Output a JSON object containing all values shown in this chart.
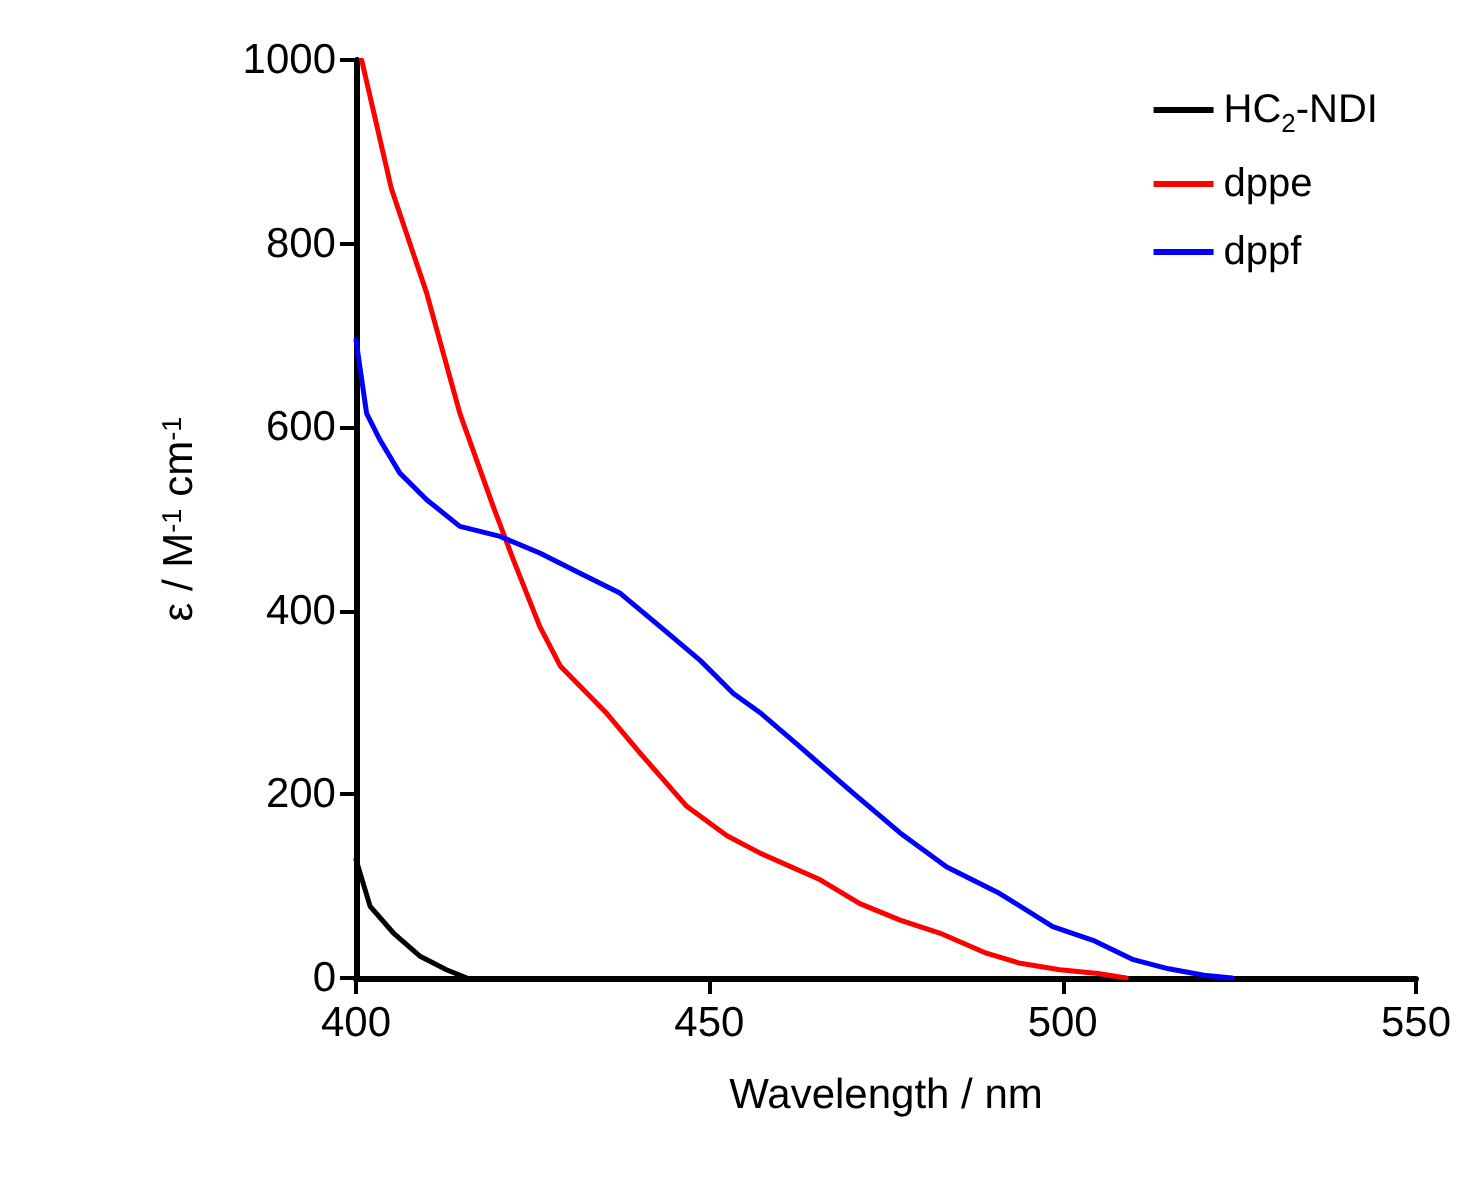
{
  "chart_data": {
    "type": "line",
    "xlabel": "Wavelength / nm",
    "ylabel": "ε / M$^{-1}$ cm$^{-1}$",
    "xlim": [
      400,
      550
    ],
    "xticks": [
      400,
      450,
      500,
      550
    ],
    "ylim": [
      0,
      1000
    ],
    "yticks": [
      0,
      200,
      400,
      600,
      800,
      1000
    ],
    "grid": false,
    "legend": "top right",
    "marker": "none",
    "line_style": "solid",
    "series": [
      {
        "name": "HC$_{2}$-NDI",
        "color": "#000000",
        "x": [
          400,
          402,
          405.3,
          409,
          412.8,
          415.7
        ],
        "values": [
          129,
          78,
          49,
          24,
          9,
          0
        ]
      },
      {
        "name": "dppe",
        "color": "#ff0000",
        "x": [
          400.8,
          405,
          410,
          414.7,
          419.4,
          422.3,
          426,
          428.9,
          435.5,
          440.2,
          446.8,
          452.5,
          457.2,
          465.7,
          471.3,
          477,
          482.6,
          489.2,
          494,
          499.6,
          505,
          509
        ],
        "values": [
          1000,
          860,
          746,
          615,
          514,
          455,
          383,
          340,
          288,
          245,
          187,
          155,
          136,
          107,
          81,
          63,
          49,
          27,
          16,
          9,
          5,
          0
        ]
      },
      {
        "name": "dppf",
        "color": "#0000ff",
        "x": [
          400,
          401.5,
          403.4,
          406.2,
          410,
          414.7,
          420.4,
          426,
          431.7,
          437.4,
          443,
          448.7,
          453.4,
          457.2,
          462.8,
          470.4,
          477,
          483.6,
          491.1,
          498.6,
          504.3,
          510,
          515,
          520,
          524
        ],
        "values": [
          695,
          615,
          586,
          550,
          521,
          492,
          481,
          463,
          441,
          419,
          383,
          346,
          310,
          289,
          252,
          201,
          158,
          121,
          92,
          56,
          41,
          20,
          10,
          3,
          0
        ]
      }
    ]
  }
}
